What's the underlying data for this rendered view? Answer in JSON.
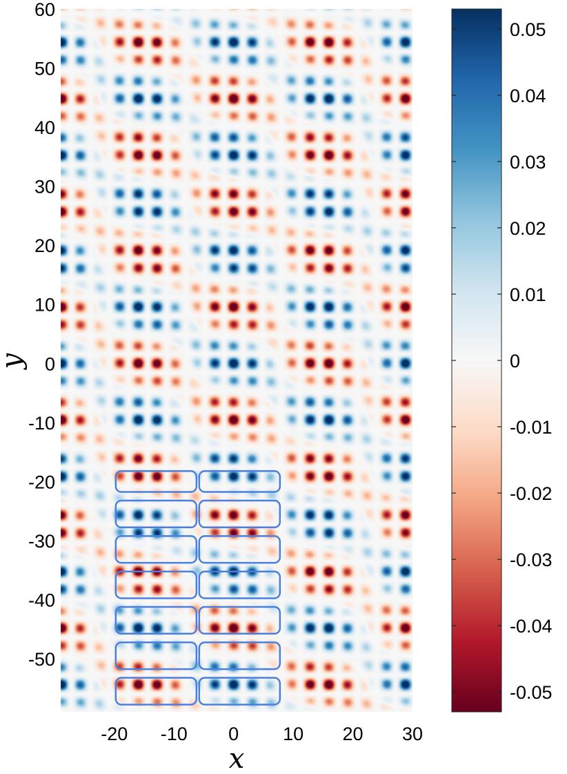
{
  "chart_data": {
    "type": "heatmap",
    "title": "",
    "xlabel": "x",
    "ylabel": "y",
    "xlim": [
      -29,
      30
    ],
    "ylim": [
      -59,
      60
    ],
    "x_ticks": [
      -20,
      -10,
      0,
      10,
      20,
      30
    ],
    "x_tick_labels": [
      "-20",
      "-10",
      "0",
      "10",
      "20",
      "30"
    ],
    "y_ticks": [
      60,
      50,
      40,
      30,
      20,
      10,
      0,
      -10,
      -20,
      -30,
      -40,
      -50
    ],
    "y_tick_labels": [
      "60",
      "50",
      "40",
      "30",
      "20",
      "10",
      "0",
      "-10",
      "-20",
      "-30",
      "-40",
      "-50"
    ],
    "colorbar": {
      "range": [
        -0.053,
        0.053
      ],
      "ticks": [
        0.05,
        0.04,
        0.03,
        0.02,
        0.01,
        0,
        -0.01,
        -0.02,
        -0.03,
        -0.04,
        -0.05
      ],
      "tick_labels": [
        "0.05",
        "0.04",
        "0.03",
        "0.02",
        "0.01",
        "0",
        "-0.01",
        "-0.02",
        "-0.03",
        "-0.04",
        "-0.05"
      ],
      "colormap": "RdBu",
      "colors": [
        "#67001f",
        "#b2182b",
        "#d6604d",
        "#f4a582",
        "#fddbc7",
        "#f7f7f7",
        "#d1e5f0",
        "#92c5de",
        "#4393c3",
        "#2166ac",
        "#053061"
      ]
    },
    "field": {
      "description_colors": "alternating red and blue blob clusters on fine periodic lattice",
      "lattice_period_x": 3.2,
      "lattice_period_y": 3.2,
      "superlattice_period_x": 30,
      "superlattice_period_y": 18,
      "amplitude": 0.05
    },
    "overlay_boxes": {
      "color": "#4a7fe0",
      "columns_x": [
        [
          -20,
          -6
        ],
        [
          -6,
          8
        ]
      ],
      "rows_y": [
        [
          -18,
          -22
        ],
        [
          -23,
          -28
        ],
        [
          -29,
          -34
        ],
        [
          -35,
          -40
        ],
        [
          -41,
          -46
        ],
        [
          -47,
          -52
        ],
        [
          -53,
          -58
        ]
      ]
    }
  }
}
